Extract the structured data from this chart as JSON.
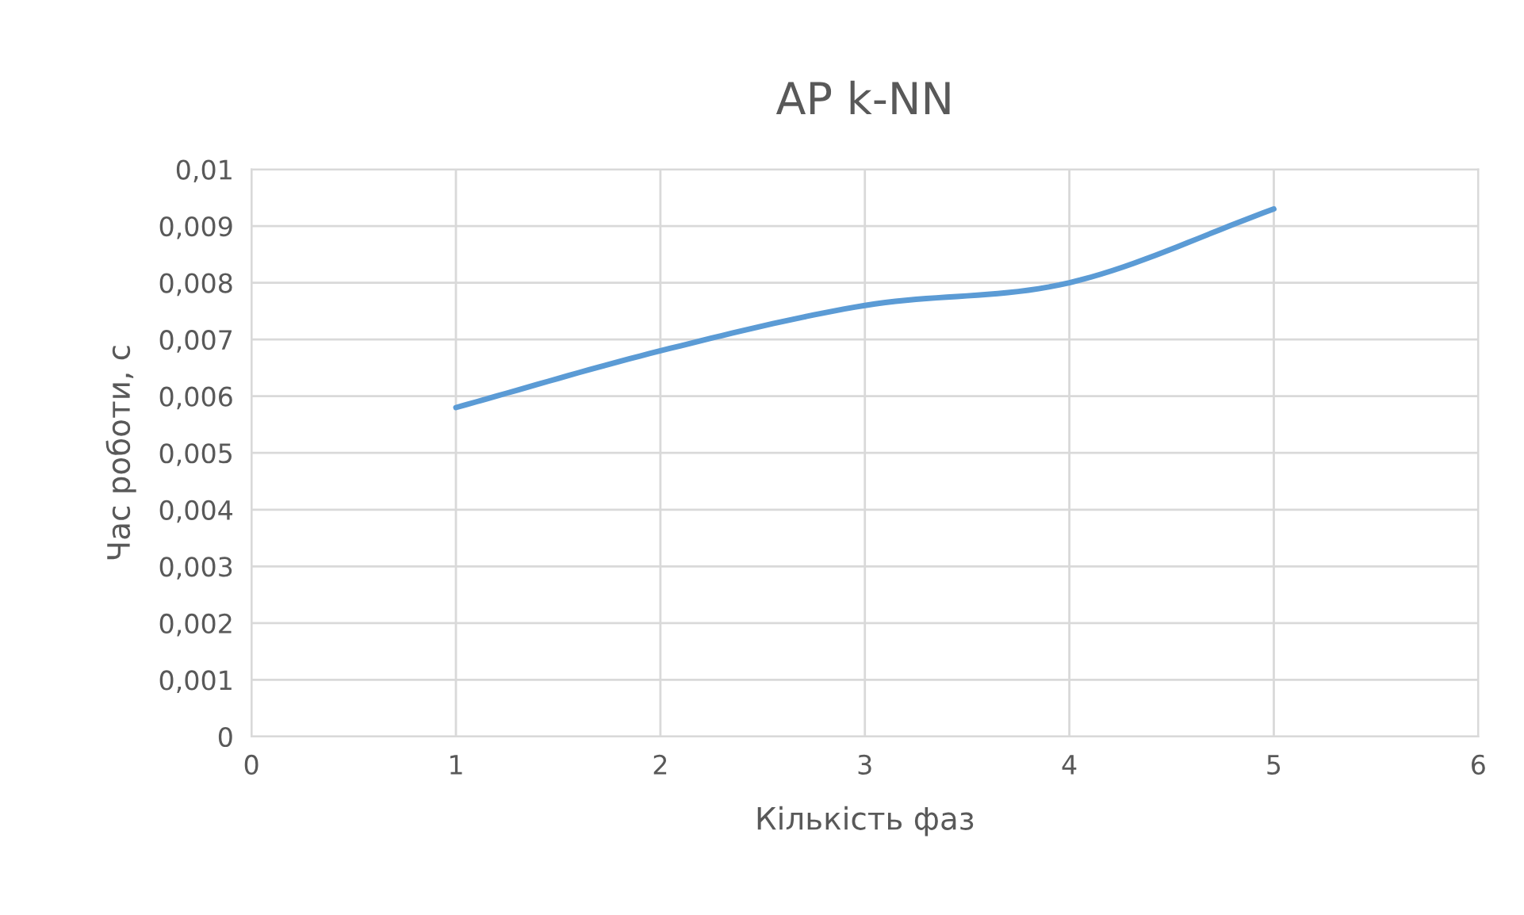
{
  "chart_data": {
    "type": "line",
    "title": "AP k-NN",
    "xlabel": "Кількість фаз",
    "ylabel": "Час роботи, с",
    "x": [
      1,
      2,
      3,
      4,
      5
    ],
    "series": [
      {
        "color": "#5b9bd5",
        "values": [
          0.0058,
          0.0068,
          0.0076,
          0.008,
          0.0093
        ]
      }
    ],
    "xlim": [
      0,
      6
    ],
    "xticks": [
      0,
      1,
      2,
      3,
      4,
      5,
      6
    ],
    "ylim": [
      0,
      0.01
    ],
    "yticks": [
      0,
      {
        "value": 0.001,
        "label": "0,001"
      },
      {
        "value": 0.002,
        "label": "0,002"
      },
      {
        "value": 0.003,
        "label": "0,003"
      },
      {
        "value": 0.004,
        "label": "0,004"
      },
      {
        "value": 0.005,
        "label": "0,005"
      },
      {
        "value": 0.006,
        "label": "0,006"
      },
      {
        "value": 0.007,
        "label": "0,007"
      },
      {
        "value": 0.008,
        "label": "0,008"
      },
      {
        "value": 0.009,
        "label": "0,009"
      },
      {
        "value": 0.01,
        "label": "0,01"
      }
    ],
    "grid": true,
    "marker": "none",
    "line_style": "solid",
    "legend": false
  }
}
